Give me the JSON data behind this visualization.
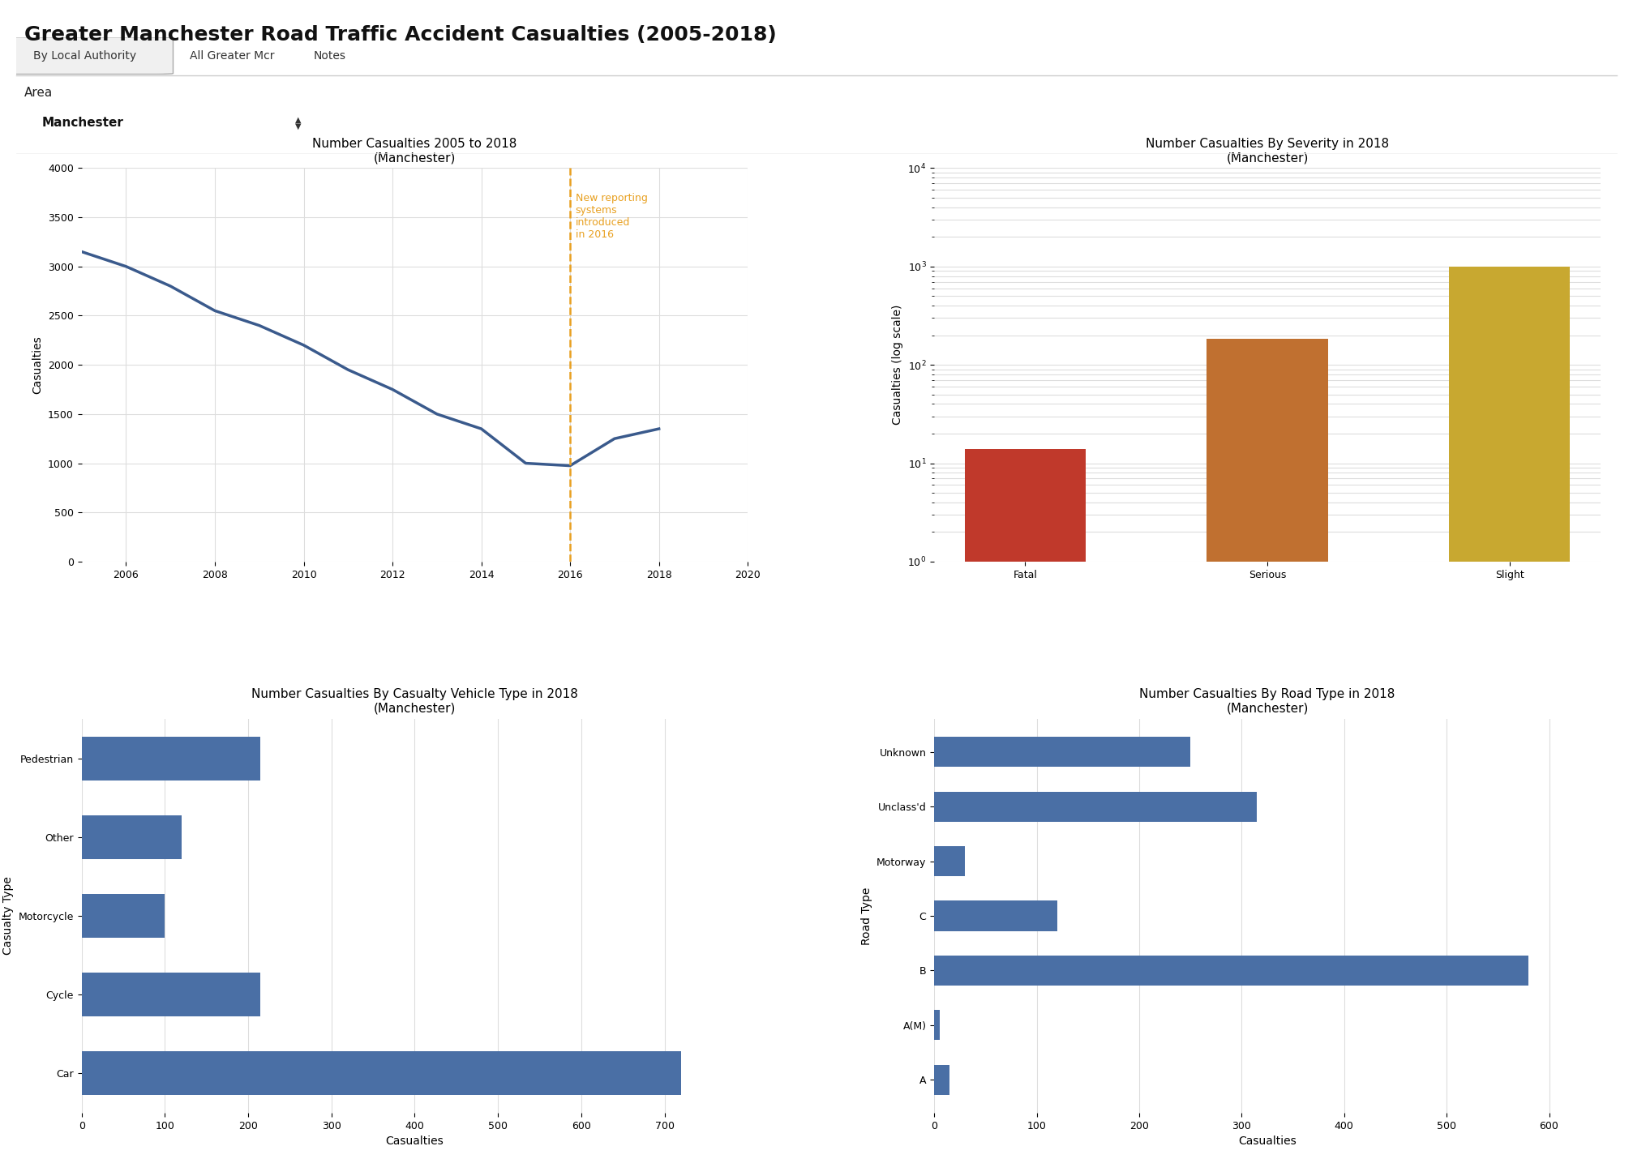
{
  "title": "Greater Manchester Road Traffic Accident Casualties (2005-2018)",
  "tabs": [
    "By Local Authority",
    "All Greater Mcr",
    "Notes"
  ],
  "area_label": "Area",
  "area_value": "Manchester",
  "bg_color": "#ffffff",
  "line_chart": {
    "title": "Number Casualties 2005 to 2018\n(Manchester)",
    "years": [
      2005,
      2006,
      2007,
      2008,
      2009,
      2010,
      2011,
      2012,
      2013,
      2014,
      2015,
      2016,
      2017,
      2018
    ],
    "values": [
      3150,
      3000,
      2800,
      2550,
      2400,
      2200,
      1950,
      1750,
      1500,
      1350,
      1000,
      975,
      1250,
      1350
    ],
    "line_color": "#3a5a8c",
    "line_width": 2.5,
    "ylabel": "Casualties",
    "xlim": [
      2005,
      2020
    ],
    "ylim": [
      0,
      4000
    ],
    "yticks": [
      0,
      500,
      1000,
      1500,
      2000,
      2500,
      3000,
      3500,
      4000
    ],
    "xticks": [
      2006,
      2008,
      2010,
      2012,
      2014,
      2016,
      2018,
      2020
    ],
    "vline_x": 2016,
    "vline_color": "#e8a020",
    "vline_label": "New reporting\nsystems\nintroduced\nin 2016"
  },
  "bar_severity": {
    "title": "Number Casualties By Severity in 2018\n(Manchester)",
    "categories": [
      "Fatal",
      "Serious",
      "Slight"
    ],
    "values": [
      14,
      185,
      1000
    ],
    "colors": [
      "#c0392b",
      "#c07030",
      "#c8a830"
    ],
    "ylabel": "Casualties (log scale)",
    "bar_width": 0.5
  },
  "bar_vehicle": {
    "title": "Number Casualties By Casualty Vehicle Type in 2018\n(Manchester)",
    "categories": [
      "Car",
      "Cycle",
      "Motorcycle",
      "Other",
      "Pedestrian"
    ],
    "values": [
      720,
      215,
      100,
      120,
      215
    ],
    "color": "#4a6fa5",
    "xlabel": "Casualties",
    "ylabel": "Casualty Type",
    "xlim": [
      0,
      800
    ],
    "xticks": [
      0,
      100,
      200,
      300,
      400,
      500,
      600,
      700
    ]
  },
  "bar_road": {
    "title": "Number Casualties By Road Type in 2018\n(Manchester)",
    "categories": [
      "A",
      "A(M)",
      "B",
      "C",
      "Motorway",
      "Unclass'd",
      "Unknown"
    ],
    "values": [
      15,
      5,
      580,
      120,
      30,
      315,
      250
    ],
    "color": "#4a6fa5",
    "xlabel": "Casualties",
    "ylabel": "Road Type",
    "xlim": [
      0,
      650
    ],
    "xticks": [
      0,
      100,
      200,
      300,
      400,
      500,
      600
    ]
  }
}
